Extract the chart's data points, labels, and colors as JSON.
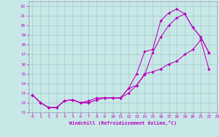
{
  "xlabel": "Windchill (Refroidissement éolien,°C)",
  "bg_color": "#c8e8e8",
  "grid_color": "#a0c8c8",
  "line_color": "#bb00bb",
  "spine_color": "#9090b0",
  "xlim": [
    -0.5,
    23
  ],
  "ylim": [
    11,
    22.5
  ],
  "xticks": [
    0,
    1,
    2,
    3,
    4,
    5,
    6,
    7,
    8,
    9,
    10,
    11,
    12,
    13,
    14,
    15,
    16,
    17,
    18,
    19,
    20,
    21,
    22,
    23
  ],
  "yticks": [
    11,
    12,
    13,
    14,
    15,
    16,
    17,
    18,
    19,
    20,
    21,
    22
  ],
  "line1_x": [
    0,
    1,
    2,
    3,
    4,
    5,
    6,
    7,
    8,
    9,
    10,
    11,
    12,
    13,
    14,
    15,
    16,
    17,
    18,
    19,
    20,
    21,
    22
  ],
  "line1_y": [
    12.8,
    12.0,
    11.5,
    11.5,
    12.2,
    12.3,
    12.0,
    12.0,
    12.3,
    12.5,
    12.5,
    12.5,
    13.0,
    13.8,
    15.0,
    15.2,
    15.5,
    16.0,
    16.3,
    17.0,
    17.5,
    18.5,
    15.5
  ],
  "line2_x": [
    0,
    1,
    2,
    3,
    4,
    5,
    6,
    7,
    8,
    9,
    10,
    11,
    12,
    13,
    14,
    15,
    16,
    17,
    18,
    19,
    20,
    21,
    22
  ],
  "line2_y": [
    12.8,
    12.0,
    11.5,
    11.5,
    12.2,
    12.3,
    12.0,
    12.0,
    12.3,
    12.5,
    12.5,
    12.5,
    13.5,
    13.8,
    14.9,
    17.2,
    18.8,
    20.0,
    20.8,
    21.2,
    19.8,
    18.8,
    17.2
  ],
  "line3_x": [
    0,
    1,
    2,
    3,
    4,
    5,
    6,
    7,
    8,
    9,
    10,
    11,
    12,
    13,
    14,
    15,
    16,
    17,
    18,
    19,
    20,
    21,
    22
  ],
  "line3_y": [
    12.8,
    12.0,
    11.5,
    11.5,
    12.2,
    12.3,
    12.0,
    12.2,
    12.5,
    12.5,
    12.5,
    12.5,
    13.5,
    15.0,
    17.3,
    17.5,
    20.5,
    21.3,
    21.7,
    21.2,
    19.8,
    18.8,
    17.2
  ]
}
